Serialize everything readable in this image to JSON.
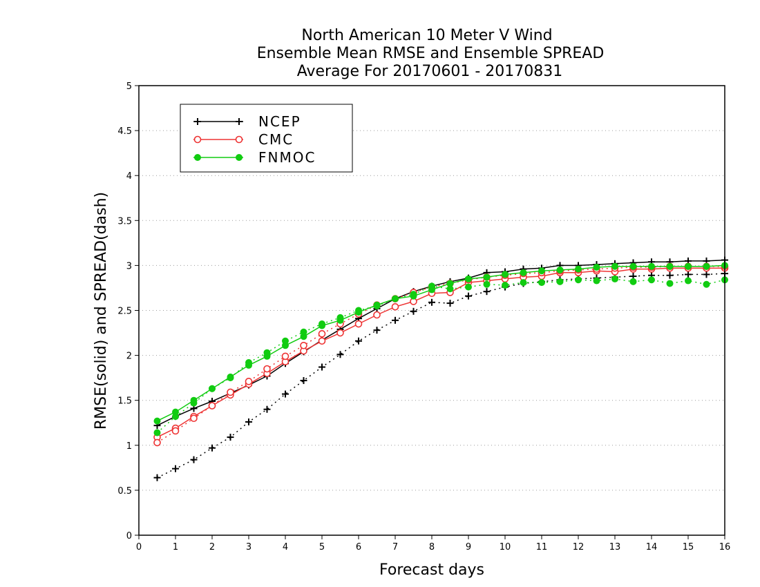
{
  "chart_data": {
    "type": "line",
    "title_lines": [
      "North American 10 Meter V Wind",
      "Ensemble Mean RMSE and Ensemble SPREAD",
      "Average For 20170601 - 20170831"
    ],
    "xlabel": "Forecast days",
    "ylabel": "RMSE(solid) and SPREAD(dash)",
    "xlim": [
      0,
      16
    ],
    "ylim": [
      0,
      5
    ],
    "xticks": [
      "0",
      "1",
      "2",
      "3",
      "4",
      "5",
      "6",
      "7",
      "8",
      "9",
      "10",
      "11",
      "12",
      "13",
      "14",
      "15",
      "16"
    ],
    "yticks": [
      "0",
      "0.5",
      "1",
      "1.5",
      "2",
      "2.5",
      "3",
      "3.5",
      "4",
      "4.5",
      "5"
    ],
    "grid": true,
    "legend_position": "top-left",
    "x": [
      0.5,
      1,
      1.5,
      2,
      2.5,
      3,
      3.5,
      4,
      4.5,
      5,
      5.5,
      6,
      6.5,
      7,
      7.5,
      8,
      8.5,
      9,
      9.5,
      10,
      10.5,
      11,
      11.5,
      12,
      12.5,
      13,
      13.5,
      14,
      14.5,
      15,
      15.5,
      16
    ],
    "series": [
      {
        "name": "NCEP",
        "color": "#000000",
        "marker": "plus",
        "style": "solid",
        "values": [
          1.22,
          1.32,
          1.41,
          1.49,
          1.58,
          1.67,
          1.77,
          1.91,
          2.04,
          2.17,
          2.29,
          2.41,
          2.52,
          2.63,
          2.71,
          2.77,
          2.82,
          2.86,
          2.92,
          2.93,
          2.96,
          2.97,
          3.0,
          3.0,
          3.01,
          3.02,
          3.03,
          3.04,
          3.04,
          3.05,
          3.05,
          3.06
        ]
      },
      {
        "name": "NCEP",
        "color": "#000000",
        "marker": "plus",
        "style": "dash",
        "values": [
          0.64,
          0.74,
          0.84,
          0.97,
          1.09,
          1.26,
          1.4,
          1.57,
          1.72,
          1.87,
          2.01,
          2.16,
          2.28,
          2.39,
          2.49,
          2.59,
          2.58,
          2.66,
          2.71,
          2.76,
          2.8,
          2.82,
          2.84,
          2.85,
          2.86,
          2.87,
          2.88,
          2.89,
          2.89,
          2.9,
          2.9,
          2.91
        ]
      },
      {
        "name": "CMC",
        "color": "#ee3333",
        "marker": "circle-open",
        "style": "solid",
        "values": [
          1.09,
          1.19,
          1.32,
          1.44,
          1.56,
          1.68,
          1.8,
          1.93,
          2.05,
          2.16,
          2.25,
          2.35,
          2.45,
          2.54,
          2.6,
          2.69,
          2.7,
          2.81,
          2.83,
          2.85,
          2.87,
          2.88,
          2.92,
          2.92,
          2.94,
          2.93,
          2.96,
          2.96,
          2.97,
          2.97,
          2.97,
          2.97
        ]
      },
      {
        "name": "CMC",
        "color": "#ee3333",
        "marker": "circle-open",
        "style": "dash",
        "values": [
          1.03,
          1.16,
          1.3,
          1.44,
          1.59,
          1.71,
          1.85,
          1.99,
          2.11,
          2.24,
          2.35,
          2.46,
          2.56,
          2.63,
          2.7,
          2.76,
          2.8,
          2.84,
          2.87,
          2.89,
          2.91,
          2.92,
          2.94,
          2.95,
          2.96,
          2.97,
          2.98,
          2.98,
          2.99,
          2.99,
          2.99,
          2.99
        ]
      },
      {
        "name": "FNMOC",
        "color": "#11cc11",
        "marker": "circle-filled",
        "style": "solid",
        "values": [
          1.27,
          1.37,
          1.5,
          1.63,
          1.76,
          1.89,
          1.99,
          2.11,
          2.21,
          2.33,
          2.39,
          2.48,
          2.56,
          2.63,
          2.66,
          2.73,
          2.8,
          2.85,
          2.87,
          2.9,
          2.92,
          2.94,
          2.95,
          2.96,
          2.98,
          2.99,
          2.99,
          2.99,
          2.99,
          2.99,
          2.99,
          3.0
        ]
      },
      {
        "name": "FNMOC",
        "color": "#11cc11",
        "marker": "circle-filled",
        "style": "dash",
        "values": [
          1.14,
          1.32,
          1.47,
          1.63,
          1.75,
          1.92,
          2.03,
          2.16,
          2.26,
          2.35,
          2.42,
          2.5,
          2.55,
          2.63,
          2.68,
          2.77,
          2.74,
          2.76,
          2.79,
          2.78,
          2.81,
          2.81,
          2.82,
          2.84,
          2.83,
          2.85,
          2.82,
          2.84,
          2.8,
          2.83,
          2.79,
          2.84
        ]
      }
    ],
    "legend": [
      {
        "name": "NCEP",
        "color": "#000000",
        "marker": "plus"
      },
      {
        "name": "CMC",
        "color": "#ee3333",
        "marker": "circle-open"
      },
      {
        "name": "FNMOC",
        "color": "#11cc11",
        "marker": "circle-filled"
      }
    ]
  }
}
